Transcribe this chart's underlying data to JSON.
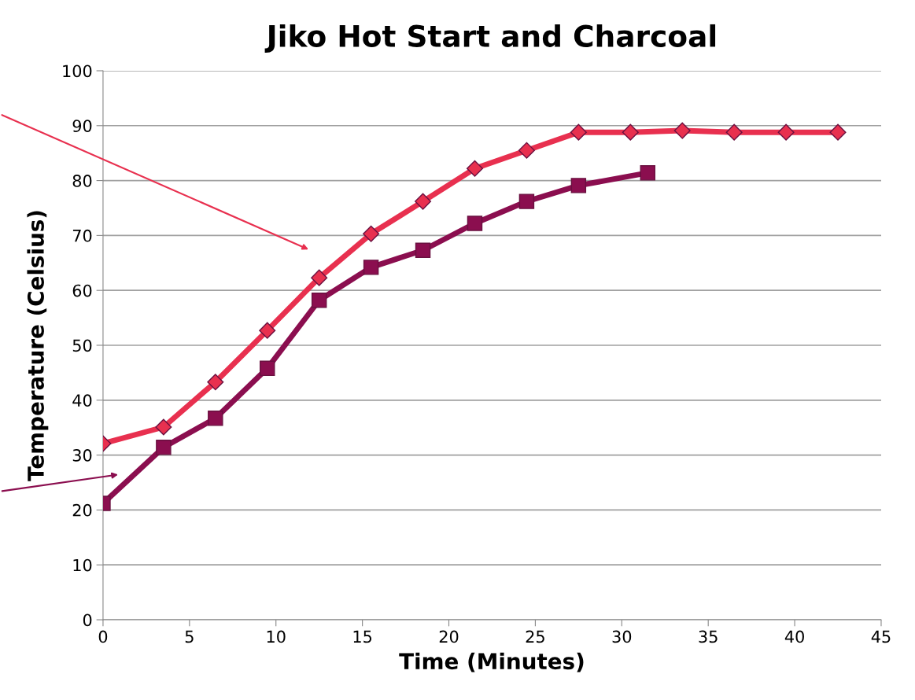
{
  "chart_data": {
    "type": "line",
    "title": "Jiko Hot Start and Charcoal",
    "xlabel": "Time (Minutes)",
    "ylabel": "Temperature (Celsius)",
    "series": [
      {
        "color": "#e8304f",
        "marker": "diamond",
        "x": [
          0,
          3.5,
          6.5,
          9.5,
          12.5,
          15.5,
          18.5,
          21.5,
          24.5,
          27.5,
          30.5,
          33.5,
          36.5,
          39.5,
          42.5
        ],
        "values": [
          32.1,
          35.1,
          43.3,
          52.7,
          62.3,
          70.3,
          76.2,
          82.2,
          85.5,
          88.8,
          88.8,
          89.1,
          88.8,
          88.8,
          88.8
        ]
      },
      {
        "color": "#8b0e4f",
        "marker": "square",
        "x": [
          0,
          3.5,
          6.5,
          9.5,
          12.5,
          15.5,
          18.5,
          21.5,
          24.5,
          27.5,
          31.5
        ],
        "values": [
          21.2,
          31.4,
          36.7,
          45.8,
          58.2,
          64.2,
          67.3,
          72.2,
          76.2,
          79.1,
          81.4
        ]
      }
    ],
    "xlim": [
      0,
      45
    ],
    "xticks": [
      0,
      5,
      10,
      15,
      20,
      25,
      30,
      35,
      40,
      45
    ],
    "ylim": [
      0,
      100
    ],
    "yticks": [
      0,
      10,
      20,
      30,
      40,
      50,
      60,
      70,
      80,
      90,
      100
    ],
    "grid": "y",
    "line_style": "solid",
    "legend": false
  }
}
